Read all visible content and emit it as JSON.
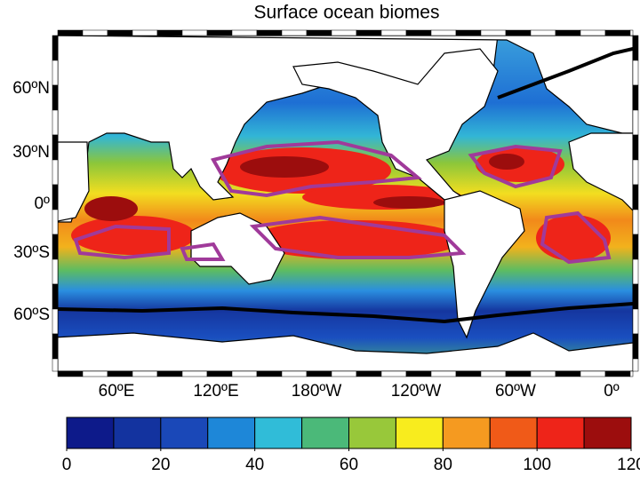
{
  "title": "Surface ocean biomes",
  "map": {
    "lon_labels": [
      "60ºE",
      "120ºE",
      "180ºW",
      "120ºW",
      "60ºW",
      "0º"
    ],
    "lat_labels": [
      "60ºN",
      "30ºN",
      "0º",
      "30ºS",
      "60ºS"
    ]
  },
  "colorbar": {
    "bins": [
      0,
      10,
      20,
      30,
      40,
      50,
      60,
      70,
      80,
      90,
      100,
      110,
      120
    ],
    "colors": [
      "#0d1a8a",
      "#13339f",
      "#1a48b8",
      "#1e87d8",
      "#30bcd8",
      "#4bb979",
      "#98c83a",
      "#f8ec1e",
      "#f59a20",
      "#f05a18",
      "#ee2419",
      "#9c0d0d"
    ],
    "ticks": [
      0,
      20,
      40,
      60,
      80,
      100,
      120
    ]
  }
}
